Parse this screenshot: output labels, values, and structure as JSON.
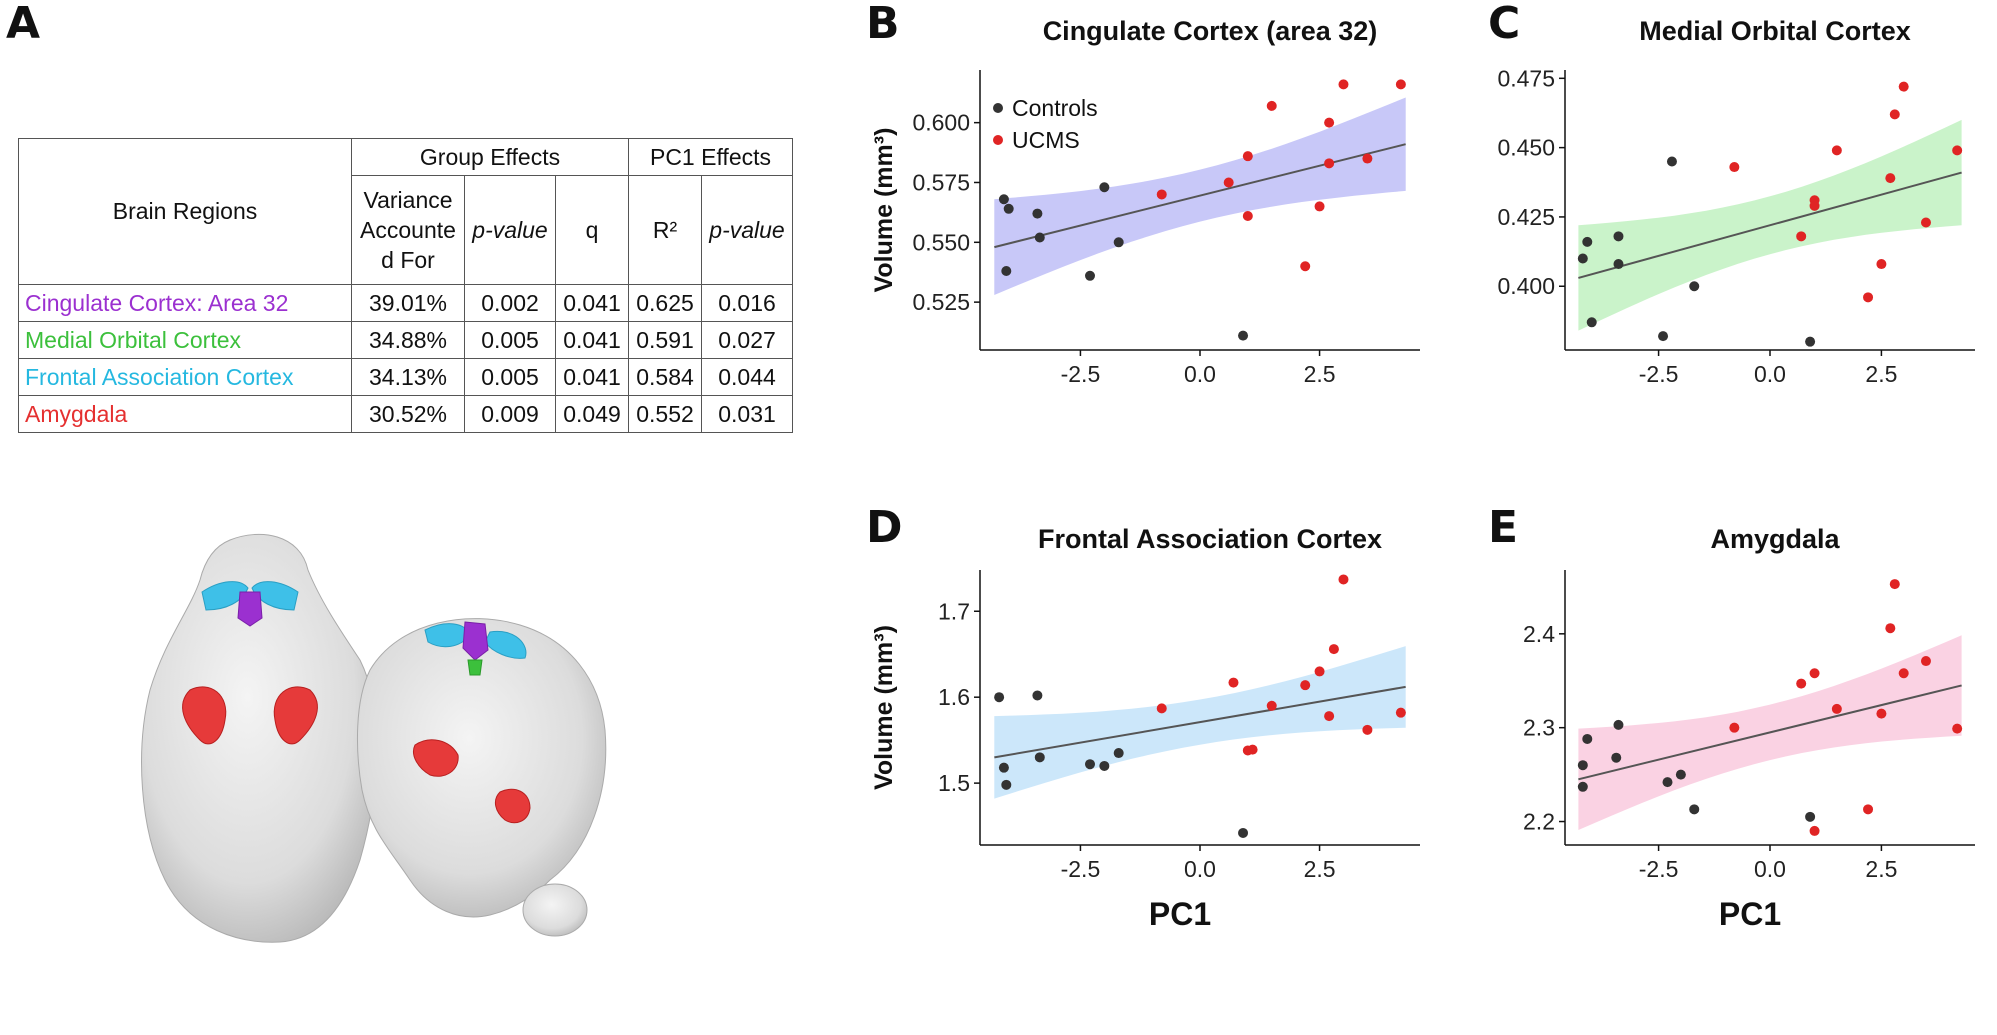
{
  "panel_labels": [
    "A",
    "B",
    "C",
    "D",
    "E"
  ],
  "table": {
    "regions_header": "Brain Regions",
    "group_effects_header": "Group Effects",
    "pc1_effects_header": "PC1 Effects",
    "columns": [
      "Variance Accounte d For",
      "p-value",
      "q",
      "R²",
      "p-value"
    ],
    "rows": [
      {
        "region": "Cingulate Cortex: Area 32",
        "color": "#9b30d0",
        "variance": "39.01%",
        "p_group": "0.002",
        "q": "0.041",
        "r2": "0.625",
        "p_pc1": "0.016"
      },
      {
        "region": "Medial Orbital Cortex",
        "color": "#3cc03c",
        "variance": "34.88%",
        "p_group": "0.005",
        "q": "0.041",
        "r2": "0.591",
        "p_pc1": "0.027"
      },
      {
        "region": "Frontal Association Cortex",
        "color": "#25b8e0",
        "variance": "34.13%",
        "p_group": "0.005",
        "q": "0.041",
        "r2": "0.584",
        "p_pc1": "0.044"
      },
      {
        "region": "Amygdala",
        "color": "#e53030",
        "variance": "30.52%",
        "p_group": "0.009",
        "q": "0.049",
        "r2": "0.552",
        "p_pc1": "0.031"
      }
    ]
  },
  "legend": {
    "controls": "Controls",
    "ucms": "UCMS",
    "controls_color": "#333333",
    "ucms_color": "#e02424"
  },
  "chart_data": [
    {
      "panel": "B",
      "type": "scatter",
      "title": "Cingulate Cortex (area 32)",
      "ylabel": "Volume (mm³)",
      "xlabel": "",
      "fill": "#c2c2f7",
      "show_legend": true,
      "xlim": [
        -4.6,
        4.6
      ],
      "ylim": [
        0.505,
        0.622
      ],
      "xticks": [
        -2.5,
        0.0,
        2.5
      ],
      "xtick_labels": [
        "-2.5",
        "0.0",
        "2.5"
      ],
      "yticks": [
        0.525,
        0.55,
        0.575,
        0.6
      ],
      "ytick_labels": [
        "0.525",
        "0.550",
        "0.575",
        "0.600"
      ],
      "fit": {
        "x0": -4.3,
        "y0": 0.548,
        "x1": 4.3,
        "y1": 0.591
      },
      "band": {
        "lo0": 0.528,
        "hi0": 0.568,
        "lo1": 0.571,
        "hi1": 0.61
      },
      "controls": [
        [
          -4.1,
          0.568
        ],
        [
          -4.0,
          0.564
        ],
        [
          -3.4,
          0.562
        ],
        [
          -3.35,
          0.552
        ],
        [
          -2.0,
          0.573
        ],
        [
          -1.7,
          0.55
        ],
        [
          -2.3,
          0.536
        ],
        [
          -4.05,
          0.538
        ],
        [
          0.9,
          0.511
        ]
      ],
      "ucms": [
        [
          -0.8,
          0.57
        ],
        [
          0.6,
          0.575
        ],
        [
          1.0,
          0.586
        ],
        [
          1.0,
          0.561
        ],
        [
          1.5,
          0.607
        ],
        [
          2.2,
          0.54
        ],
        [
          2.5,
          0.565
        ],
        [
          2.7,
          0.583
        ],
        [
          2.7,
          0.6
        ],
        [
          3.0,
          0.616
        ],
        [
          3.5,
          0.585
        ],
        [
          4.2,
          0.616
        ]
      ]
    },
    {
      "panel": "C",
      "type": "scatter",
      "title": "Medial Orbital Cortex",
      "ylabel": "",
      "xlabel": "",
      "fill": "#c4f2c4",
      "show_legend": false,
      "xlim": [
        -4.6,
        4.6
      ],
      "ylim": [
        0.377,
        0.478
      ],
      "xticks": [
        -2.5,
        0.0,
        2.5
      ],
      "xtick_labels": [
        "-2.5",
        "0.0",
        "2.5"
      ],
      "yticks": [
        0.4,
        0.425,
        0.45,
        0.475
      ],
      "ytick_labels": [
        "0.400",
        "0.425",
        "0.450",
        "0.475"
      ],
      "fit": {
        "x0": -4.3,
        "y0": 0.403,
        "x1": 4.3,
        "y1": 0.441
      },
      "band": {
        "lo0": 0.385,
        "hi0": 0.423,
        "lo1": 0.422,
        "hi1": 0.46
      },
      "controls": [
        [
          -4.1,
          0.416
        ],
        [
          -4.2,
          0.41
        ],
        [
          -3.4,
          0.418
        ],
        [
          -3.4,
          0.408
        ],
        [
          -4.0,
          0.387
        ],
        [
          -2.2,
          0.445
        ],
        [
          -1.7,
          0.4
        ],
        [
          -2.4,
          0.382
        ],
        [
          0.9,
          0.38
        ]
      ],
      "ucms": [
        [
          -0.8,
          0.443
        ],
        [
          0.7,
          0.418
        ],
        [
          1.0,
          0.431
        ],
        [
          1.0,
          0.429
        ],
        [
          1.5,
          0.449
        ],
        [
          2.2,
          0.396
        ],
        [
          2.5,
          0.408
        ],
        [
          2.7,
          0.439
        ],
        [
          2.8,
          0.462
        ],
        [
          3.0,
          0.472
        ],
        [
          3.5,
          0.423
        ],
        [
          4.2,
          0.449
        ]
      ]
    },
    {
      "panel": "D",
      "type": "scatter",
      "title": "Frontal Association Cortex",
      "ylabel": "Volume (mm³)",
      "xlabel": "PC1",
      "fill": "#c6e4fa",
      "show_legend": false,
      "xlim": [
        -4.6,
        4.6
      ],
      "ylim": [
        1.428,
        1.748
      ],
      "xticks": [
        -2.5,
        0.0,
        2.5
      ],
      "xtick_labels": [
        "-2.5",
        "0.0",
        "2.5"
      ],
      "yticks": [
        1.5,
        1.6,
        1.7
      ],
      "ytick_labels": [
        "1.5",
        "1.6",
        "1.7"
      ],
      "fit": {
        "x0": -4.3,
        "y0": 1.53,
        "x1": 4.3,
        "y1": 1.612
      },
      "band": {
        "lo0": 1.482,
        "hi0": 1.578,
        "lo1": 1.565,
        "hi1": 1.66
      },
      "controls": [
        [
          -4.2,
          1.6
        ],
        [
          -3.4,
          1.602
        ],
        [
          -4.1,
          1.518
        ],
        [
          -4.05,
          1.498
        ],
        [
          -3.35,
          1.53
        ],
        [
          -2.3,
          1.522
        ],
        [
          -2.0,
          1.52
        ],
        [
          -1.7,
          1.535
        ],
        [
          0.9,
          1.442
        ]
      ],
      "ucms": [
        [
          -0.8,
          1.587
        ],
        [
          0.7,
          1.617
        ],
        [
          1.0,
          1.538
        ],
        [
          1.1,
          1.539
        ],
        [
          1.5,
          1.59
        ],
        [
          2.2,
          1.614
        ],
        [
          2.5,
          1.63
        ],
        [
          2.7,
          1.578
        ],
        [
          2.8,
          1.656
        ],
        [
          3.0,
          1.737
        ],
        [
          3.5,
          1.562
        ],
        [
          4.2,
          1.582
        ]
      ]
    },
    {
      "panel": "E",
      "type": "scatter",
      "title": "Amygdala",
      "ylabel": "",
      "xlabel": "PC1",
      "fill": "#f9cde0",
      "show_legend": false,
      "xlim": [
        -4.6,
        4.6
      ],
      "ylim": [
        2.175,
        2.468
      ],
      "xticks": [
        -2.5,
        0.0,
        2.5
      ],
      "xtick_labels": [
        "-2.5",
        "0.0",
        "2.5"
      ],
      "yticks": [
        2.2,
        2.3,
        2.4
      ],
      "ytick_labels": [
        "2.2",
        "2.3",
        "2.4"
      ],
      "fit": {
        "x0": -4.3,
        "y0": 2.245,
        "x1": 4.3,
        "y1": 2.345
      },
      "band": {
        "lo0": 2.19,
        "hi0": 2.298,
        "lo1": 2.29,
        "hi1": 2.397
      },
      "controls": [
        [
          -4.1,
          2.288
        ],
        [
          -4.2,
          2.26
        ],
        [
          -4.2,
          2.237
        ],
        [
          -3.4,
          2.303
        ],
        [
          -3.45,
          2.268
        ],
        [
          -2.3,
          2.242
        ],
        [
          -2.0,
          2.25
        ],
        [
          -1.7,
          2.213
        ],
        [
          0.9,
          2.205
        ]
      ],
      "ucms": [
        [
          -0.8,
          2.3
        ],
        [
          0.7,
          2.347
        ],
        [
          1.0,
          2.358
        ],
        [
          1.0,
          2.19
        ],
        [
          1.5,
          2.32
        ],
        [
          2.2,
          2.213
        ],
        [
          2.5,
          2.315
        ],
        [
          2.7,
          2.406
        ],
        [
          2.8,
          2.453
        ],
        [
          3.0,
          2.358
        ],
        [
          3.5,
          2.371
        ],
        [
          4.2,
          2.299
        ]
      ]
    }
  ]
}
